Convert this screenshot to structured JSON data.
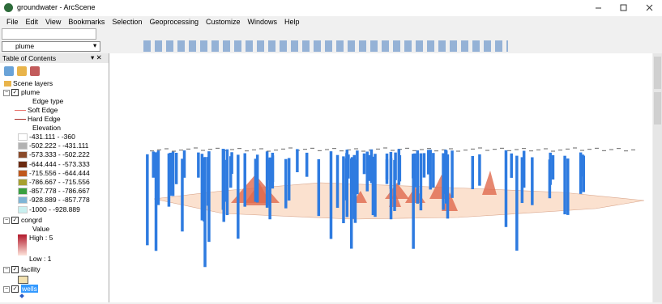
{
  "window": {
    "title": "groundwater - ArcScene"
  },
  "menu": [
    "File",
    "Edit",
    "View",
    "Bookmarks",
    "Selection",
    "Geoprocessing",
    "Customize",
    "Windows",
    "Help"
  ],
  "toolbar": {
    "layer_dropdown": "plume"
  },
  "toc": {
    "title": "Table of Contents",
    "root": "Scene layers",
    "plume": {
      "name": "plume",
      "edge_heading": "Edge type",
      "edges": [
        {
          "label": "Soft Edge",
          "color": "#e8736c"
        },
        {
          "label": "Hard Edge",
          "color": "#a8302a"
        }
      ],
      "elevation_heading": "Elevation",
      "classes": [
        {
          "label": "-431.111 - -360",
          "color": "#ffffff"
        },
        {
          "label": "-502.222 - -431.111",
          "color": "#b2b2b2"
        },
        {
          "label": "-573.333 - -502.222",
          "color": "#8a4b2a"
        },
        {
          "label": "-644.444 - -573.333",
          "color": "#6b2a10"
        },
        {
          "label": "-715.556 - -644.444",
          "color": "#c0581c"
        },
        {
          "label": "-786.667 - -715.556",
          "color": "#a8a030"
        },
        {
          "label": "-857.778 - -786.667",
          "color": "#3aa040"
        },
        {
          "label": "-928.889 - -857.778",
          "color": "#7fb5d6"
        },
        {
          "label": "-1000 - -928.889",
          "color": "#c9f0f0"
        }
      ]
    },
    "congrd": {
      "name": "congrd",
      "heading": "Value",
      "high": "High : 5",
      "low": "Low : 1"
    },
    "facility": {
      "name": "facility"
    },
    "wells": {
      "name": "wells"
    }
  }
}
